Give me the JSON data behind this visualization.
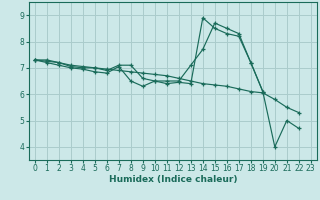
{
  "xlabel": "Humidex (Indice chaleur)",
  "background_color": "#cce8e8",
  "grid_color": "#aacccc",
  "line_color": "#1a6b5a",
  "xlim": [
    -0.5,
    23.5
  ],
  "ylim": [
    3.5,
    9.5
  ],
  "xticks": [
    0,
    1,
    2,
    3,
    4,
    5,
    6,
    7,
    8,
    9,
    10,
    11,
    12,
    13,
    14,
    15,
    16,
    17,
    18,
    19,
    20,
    21,
    22,
    23
  ],
  "yticks": [
    4,
    5,
    6,
    7,
    8,
    9
  ],
  "series": [
    [
      7.3,
      7.25,
      7.2,
      7.1,
      7.05,
      7.0,
      6.9,
      7.1,
      7.1,
      6.6,
      6.5,
      6.5,
      6.5,
      7.1,
      7.7,
      8.7,
      8.5,
      8.3,
      7.2,
      6.1,
      null,
      null,
      null,
      null
    ],
    [
      7.3,
      7.3,
      7.2,
      7.05,
      7.0,
      7.0,
      6.95,
      6.9,
      6.85,
      6.8,
      6.75,
      6.7,
      6.6,
      6.5,
      6.4,
      6.35,
      6.3,
      6.2,
      6.1,
      6.05,
      5.8,
      5.5,
      5.3,
      null
    ],
    [
      7.3,
      7.2,
      7.1,
      7.0,
      6.95,
      6.85,
      6.8,
      7.05,
      6.5,
      6.3,
      6.5,
      6.4,
      6.45,
      6.4,
      8.9,
      8.5,
      8.3,
      8.2,
      7.2,
      6.1,
      4.0,
      5.0,
      4.7,
      null
    ]
  ]
}
